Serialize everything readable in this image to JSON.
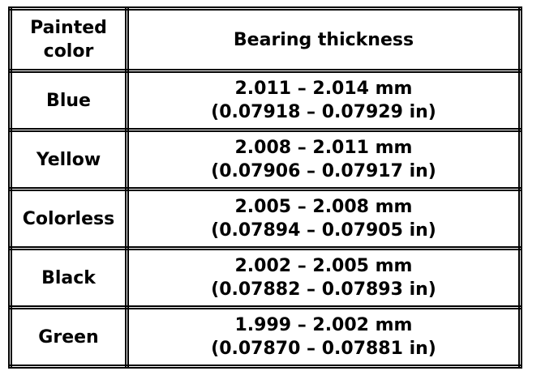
{
  "table": {
    "header": [
      "Painted color",
      "Bearing thickness"
    ],
    "rows": [
      {
        "color": "Blue",
        "mm": "2.011 – 2.014 mm",
        "in": "(0.07918 – 0.07929 in)"
      },
      {
        "color": "Yellow",
        "mm": "2.008 – 2.011 mm",
        "in": "(0.07906 – 0.07917 in)"
      },
      {
        "color": "Colorless",
        "mm": "2.005 – 2.008 mm",
        "in": "(0.07894 – 0.07905 in)"
      },
      {
        "color": "Black",
        "mm": "2.002 – 2.005 mm",
        "in": "(0.07882 – 0.07893 in)"
      },
      {
        "color": "Green",
        "mm": "1.999 – 2.002 mm",
        "in": "(0.07870 – 0.07881 in)"
      }
    ]
  }
}
